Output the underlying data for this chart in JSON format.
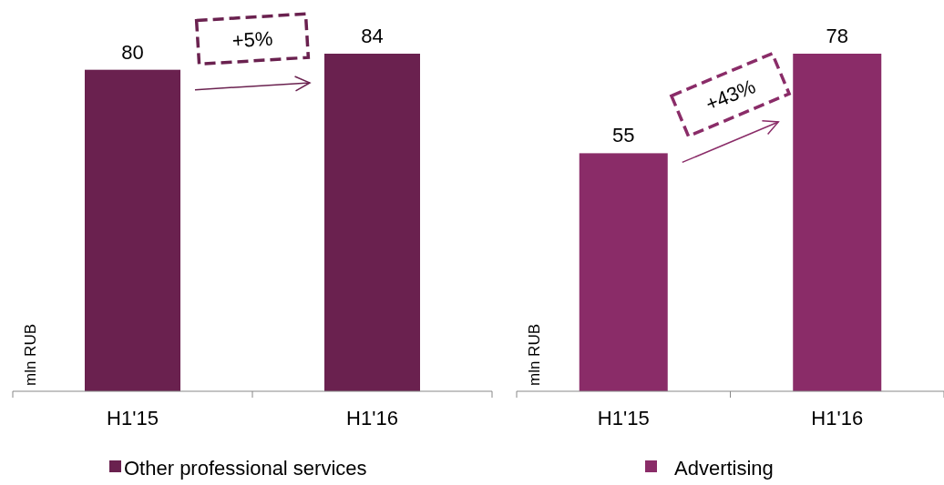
{
  "chart_data": [
    {
      "type": "bar",
      "ylabel": "mln RUB",
      "categories": [
        "H1'15",
        "H1'16"
      ],
      "series": [
        {
          "name": "Other professional services",
          "color": "#6a214f",
          "values": [
            80,
            84
          ]
        }
      ],
      "data_labels": true,
      "legend": "bottom",
      "annotations": [
        "+5%"
      ]
    },
    {
      "type": "bar",
      "ylabel": "mln RUB",
      "categories": [
        "H1'15",
        "H1'16"
      ],
      "series": [
        {
          "name": "Advertising",
          "color": "#8a2c68",
          "values": [
            55,
            78
          ]
        }
      ],
      "data_labels": true,
      "legend": "bottom",
      "annotations": [
        "+43%"
      ]
    }
  ]
}
